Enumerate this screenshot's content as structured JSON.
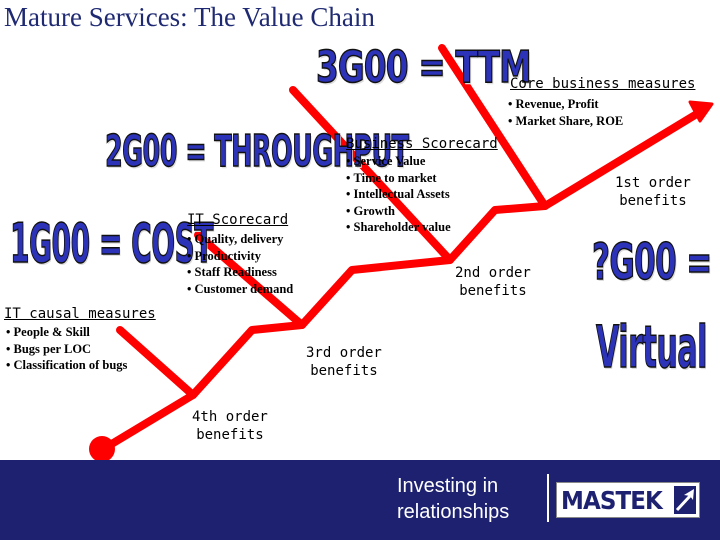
{
  "title": "Mature Services: The Value Chain",
  "labels": {
    "g3": "3G00 = TTM",
    "g2": "2G00 = THROUGHPUT",
    "g1": "1G00 = COST",
    "g4a": "?G00 =",
    "g4b": "Virtual"
  },
  "scorecards": {
    "core": {
      "title": "Core business measures",
      "items": [
        "Revenue, Profit",
        "Market Share, ROE"
      ]
    },
    "business": {
      "title": "Business Scorecard",
      "items": [
        "Service Value",
        "Time to market",
        "Intellectual Assets",
        "Growth",
        "Shareholder value"
      ]
    },
    "it": {
      "title": "IT Scorecard",
      "items": [
        "Quality, delivery",
        "Productivity",
        "Staff Readiness",
        "Customer demand"
      ]
    },
    "causal": {
      "title": "IT causal measures",
      "items": [
        "People & Skill",
        "Bugs per LOC",
        "Classification of bugs"
      ]
    }
  },
  "orders": {
    "first": [
      "1st order",
      "benefits"
    ],
    "second": [
      "2nd order",
      "benefits"
    ],
    "third": [
      "3rd order",
      "benefits"
    ],
    "fourth": [
      "4th order",
      "benefits"
    ]
  },
  "footer": {
    "tagline_line1": "Investing in",
    "tagline_line2": "relationships",
    "logo": "MASTEK"
  },
  "colors": {
    "arrow": "#ff0000",
    "footer": "#1d2170",
    "big_text": "#2c33b8",
    "title": "#1f2a72"
  }
}
